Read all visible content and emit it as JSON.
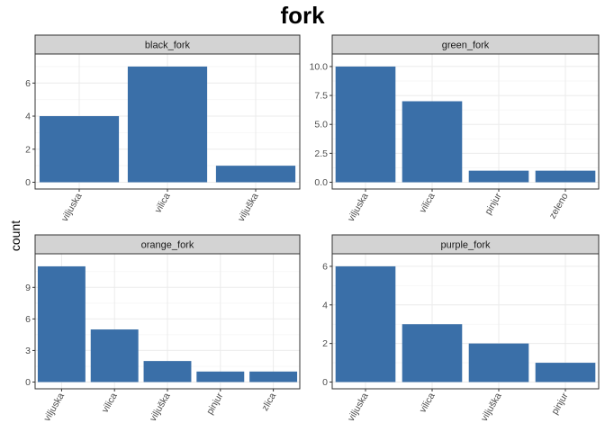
{
  "title": "fork",
  "ylabel": "count",
  "colors": {
    "bar": "#3a6fa8",
    "strip": "#d3d3d3",
    "grid_major": "#ebebeb",
    "grid_minor": "#f5f5f5",
    "border": "#333333"
  },
  "chart_data": [
    {
      "type": "bar",
      "title": "black_fork",
      "categories": [
        "viljuska",
        "vilica",
        "viljuška"
      ],
      "values": [
        4,
        7,
        1
      ],
      "ylim": [
        0,
        7.35
      ],
      "yticks": [
        0,
        2,
        4,
        6
      ],
      "ytick_labels": [
        "0",
        "2",
        "4",
        "6"
      ]
    },
    {
      "type": "bar",
      "title": "green_fork",
      "categories": [
        "viljuska",
        "vilica",
        "pinjur",
        "zeleno"
      ],
      "values": [
        10,
        7,
        1,
        1
      ],
      "ylim": [
        0,
        10.5
      ],
      "yticks": [
        0,
        2.5,
        5,
        7.5,
        10
      ],
      "ytick_labels": [
        "0.0",
        "2.5",
        "5.0",
        "7.5",
        "10.0"
      ]
    },
    {
      "type": "bar",
      "title": "orange_fork",
      "categories": [
        "viljuska",
        "vilica",
        "viljuška",
        "pinjur",
        "zlica"
      ],
      "values": [
        11,
        5,
        2,
        1,
        1
      ],
      "ylim": [
        0,
        11.55
      ],
      "yticks": [
        0,
        3,
        6,
        9
      ],
      "ytick_labels": [
        "0",
        "3",
        "6",
        "9"
      ]
    },
    {
      "type": "bar",
      "title": "purple_fork",
      "categories": [
        "viljuska",
        "vilica",
        "viljuška",
        "pinjur"
      ],
      "values": [
        6,
        3,
        2,
        1
      ],
      "ylim": [
        0,
        6.3
      ],
      "yticks": [
        0,
        2,
        4,
        6
      ],
      "ytick_labels": [
        "0",
        "2",
        "4",
        "6"
      ]
    }
  ]
}
